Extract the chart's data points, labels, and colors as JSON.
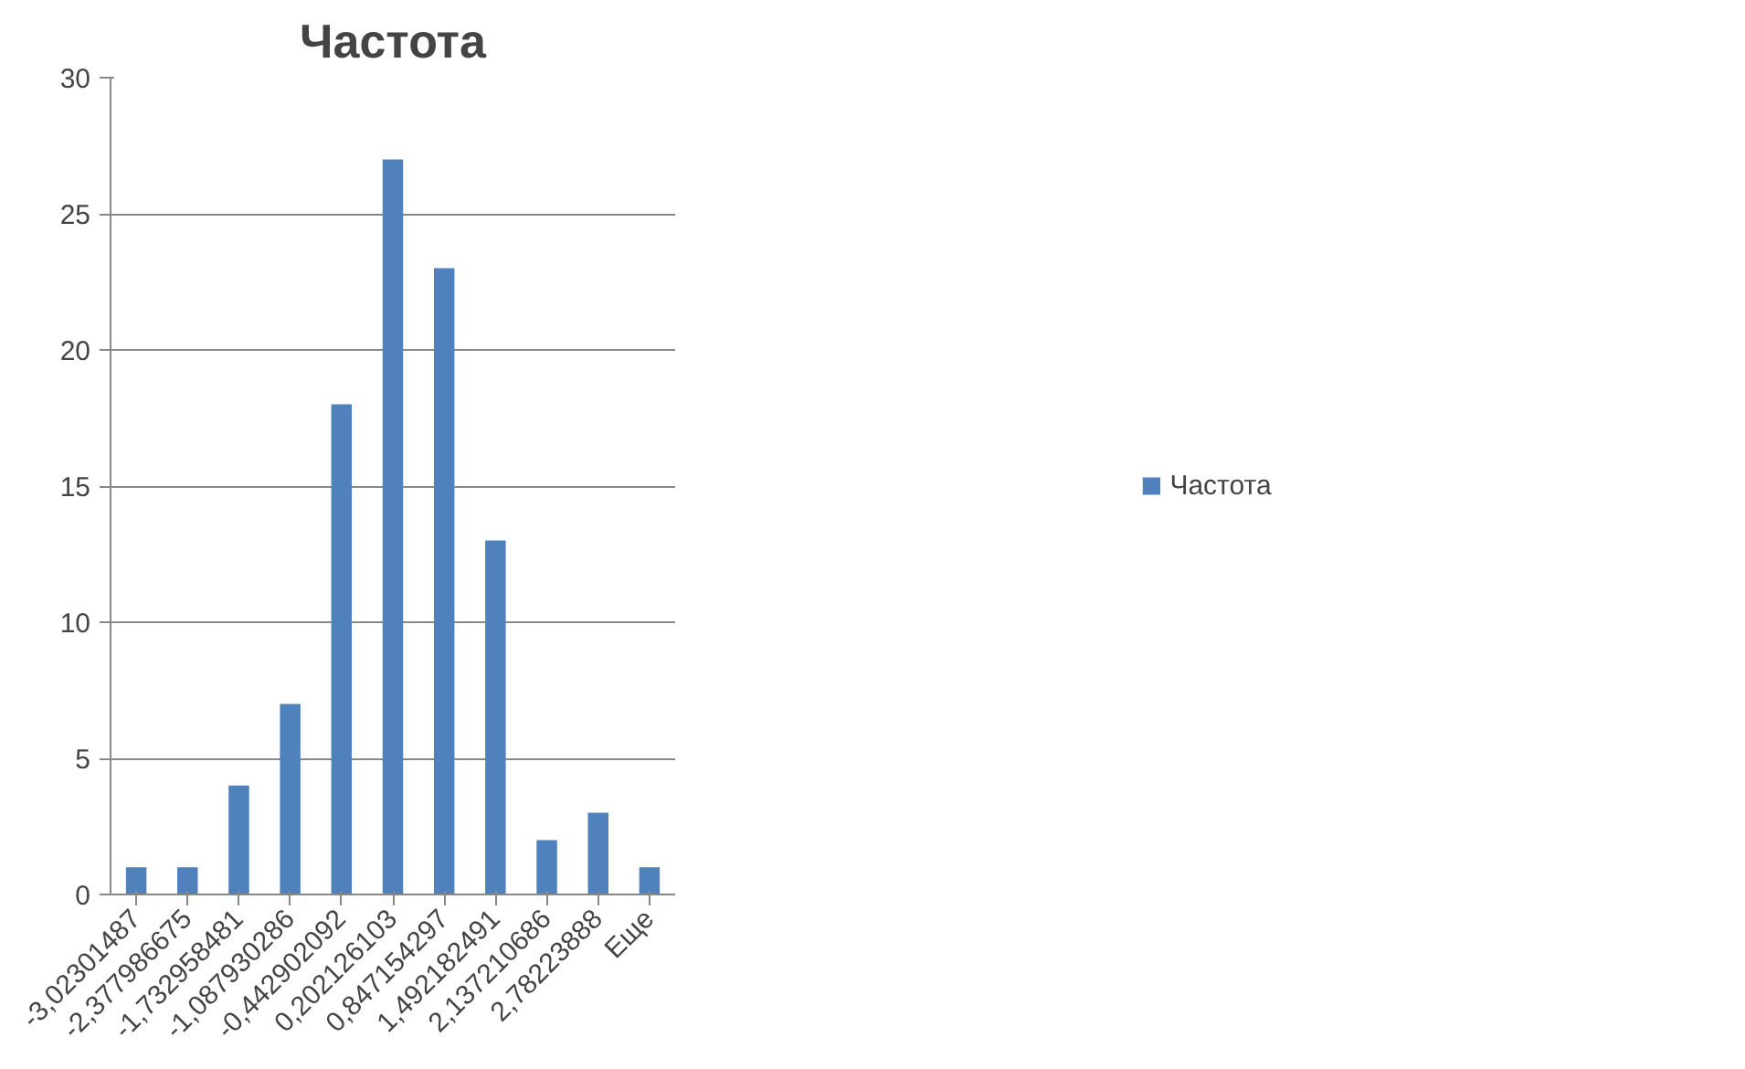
{
  "chart_data": {
    "type": "bar",
    "title": "Частота",
    "categories": [
      "-3,02301487",
      "-2,377986675",
      "-1,732958481",
      "-1,087930286",
      "-0,442902092",
      "0,202126103",
      "0,847154297",
      "1,492182491",
      "2,137210686",
      "2,78223888",
      "Еще"
    ],
    "series": [
      {
        "name": "Частота",
        "color": "#4f81bd",
        "values": [
          1,
          1,
          4,
          7,
          18,
          27,
          23,
          13,
          2,
          3,
          1
        ]
      }
    ],
    "ylim": [
      0,
      30
    ],
    "yticks": [
      0,
      5,
      10,
      15,
      20,
      25,
      30
    ],
    "grid": "y",
    "legend": "right"
  }
}
